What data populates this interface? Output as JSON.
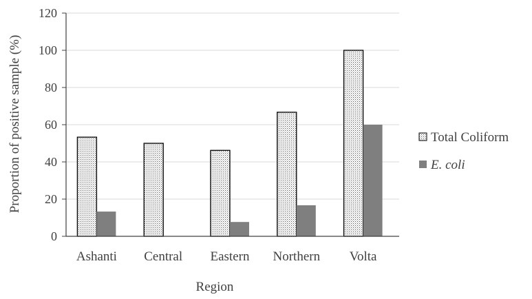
{
  "chart_data": {
    "type": "bar",
    "categories": [
      "Ashanti",
      "Central",
      "Eastern",
      "Northern",
      "Volta"
    ],
    "series": [
      {
        "name": "Total Coliform",
        "values": [
          53.3,
          50.0,
          46.2,
          66.7,
          100.0
        ],
        "fill": "dotted"
      },
      {
        "name": "E. coli",
        "values": [
          13.3,
          0,
          7.7,
          16.7,
          60.0
        ],
        "color": "#7f7f7f"
      }
    ],
    "xlabel": "Region",
    "ylabel": "Proportion of positive sample (%)",
    "ylim": [
      0,
      120
    ],
    "yticks": [
      0,
      20,
      40,
      60,
      80,
      100,
      120
    ],
    "grid": true,
    "legend": "right"
  }
}
